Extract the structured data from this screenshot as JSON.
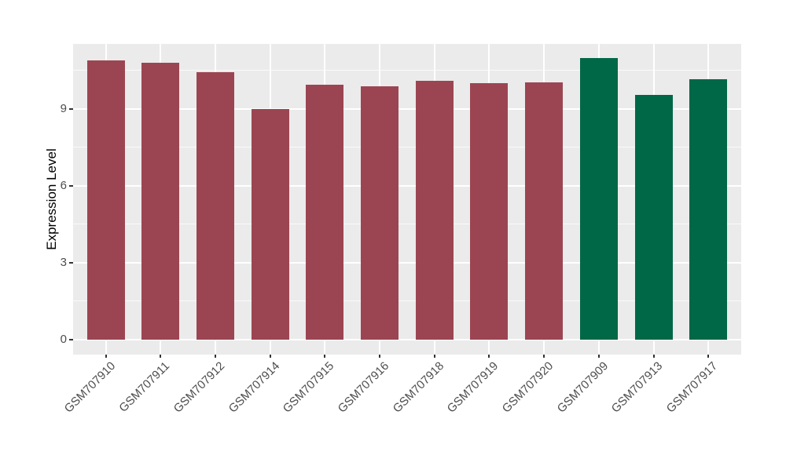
{
  "chart_data": {
    "type": "bar",
    "title": "",
    "xlabel": "",
    "ylabel": "Expression Level",
    "categories": [
      "GSM707910",
      "GSM707911",
      "GSM707912",
      "GSM707914",
      "GSM707915",
      "GSM707916",
      "GSM707918",
      "GSM707919",
      "GSM707920",
      "GSM707909",
      "GSM707913",
      "GSM707917"
    ],
    "values": [
      10.9,
      10.8,
      10.45,
      9.0,
      9.95,
      9.9,
      10.1,
      10.0,
      10.05,
      11.0,
      9.55,
      10.15
    ],
    "groups": [
      "group1",
      "group1",
      "group1",
      "group1",
      "group1",
      "group1",
      "group1",
      "group1",
      "group1",
      "group2",
      "group2",
      "group2"
    ],
    "group_colors": {
      "group1": "#9C4552",
      "group2": "#006747"
    },
    "yticks": [
      0,
      3,
      6,
      9
    ],
    "ytick_labels": [
      "0",
      "3",
      "6",
      "9"
    ],
    "minor_yticks": [
      1.5,
      4.5,
      7.5,
      10.5
    ],
    "ylim": [
      0,
      11.6
    ],
    "legend_position": "none",
    "grid": "on",
    "panel_background": "#EBEBEB",
    "gridline_color": "#FFFFFF",
    "tick_color": "#333333",
    "axis_text_color": "#4d4d4d"
  }
}
